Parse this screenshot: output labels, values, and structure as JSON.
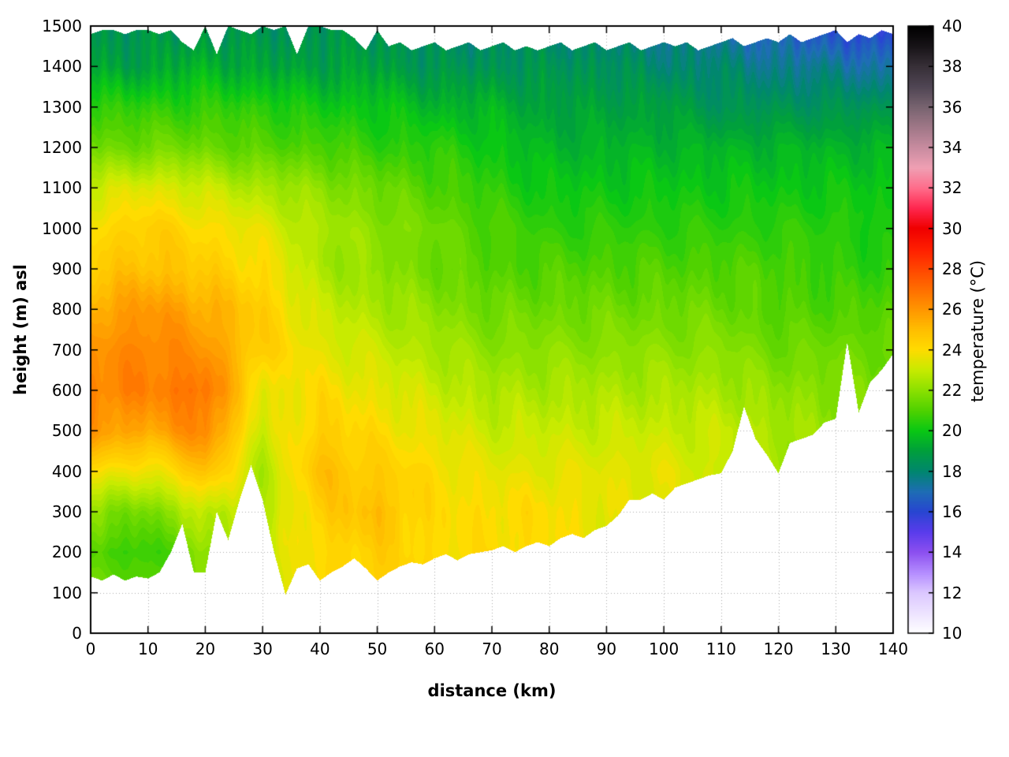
{
  "chart_data": {
    "type": "heatmap",
    "title": "",
    "xlabel": "distance (km)",
    "ylabel": "height (m) asl",
    "colorbar_label": "temperature (°C)",
    "x_range": [
      0,
      140
    ],
    "y_range": [
      0,
      1500
    ],
    "cb_range": [
      10,
      40
    ],
    "x_ticks": [
      0,
      10,
      20,
      30,
      40,
      50,
      60,
      70,
      80,
      90,
      100,
      110,
      120,
      130,
      140
    ],
    "y_ticks": [
      0,
      100,
      200,
      300,
      400,
      500,
      600,
      700,
      800,
      900,
      1000,
      1100,
      1200,
      1300,
      1400,
      1500
    ],
    "cb_ticks": [
      10,
      12,
      14,
      16,
      18,
      20,
      22,
      24,
      26,
      28,
      30,
      32,
      34,
      36,
      38,
      40
    ],
    "grid_on": true,
    "grid_x_step_km": 10,
    "grid_y_step_m": 100,
    "temps_by_column": [
      [
        22.0,
        22.0,
        21.0,
        22.0,
        24.0,
        26.0,
        26.5,
        26.0,
        25.5,
        24.5,
        24.0,
        23.0,
        21.5,
        20.5,
        19.0,
        18.5
      ],
      [
        21.0,
        21.0,
        20.5,
        21.5,
        23.5,
        25.5,
        26.5,
        26.5,
        26.0,
        25.0,
        24.5,
        23.5,
        21.5,
        20.5,
        19.0,
        18.5
      ],
      [
        22.0,
        22.0,
        22.0,
        23.0,
        25.0,
        26.5,
        27.0,
        26.0,
        25.5,
        24.5,
        24.0,
        23.0,
        21.5,
        20.5,
        19.5,
        18.5
      ],
      [
        23.0,
        23.0,
        23.0,
        22.5,
        22.5,
        23.0,
        23.5,
        24.5,
        24.5,
        24.0,
        23.5,
        22.5,
        21.0,
        20.5,
        19.0,
        18.5
      ],
      [
        24.0,
        24.0,
        24.0,
        24.5,
        25.0,
        24.5,
        24.0,
        23.5,
        23.0,
        22.5,
        22.5,
        22.0,
        21.0,
        20.0,
        19.0,
        18.5
      ],
      [
        24.5,
        24.5,
        24.5,
        25.0,
        24.5,
        24.0,
        23.5,
        23.0,
        22.5,
        22.0,
        22.0,
        21.5,
        20.5,
        20.0,
        19.0,
        18.5
      ],
      [
        24.0,
        24.0,
        24.0,
        24.0,
        24.0,
        23.5,
        23.0,
        22.5,
        22.0,
        21.5,
        21.5,
        21.0,
        20.5,
        19.5,
        18.5,
        18.0
      ],
      [
        24.0,
        24.0,
        24.0,
        24.0,
        23.5,
        23.0,
        22.5,
        22.0,
        21.5,
        21.0,
        21.0,
        20.5,
        20.0,
        19.5,
        18.5,
        18.0
      ],
      [
        24.0,
        24.0,
        24.0,
        24.0,
        23.5,
        23.0,
        22.5,
        22.0,
        21.5,
        21.0,
        20.5,
        20.0,
        19.5,
        19.0,
        18.5,
        18.0
      ],
      [
        23.5,
        23.5,
        23.5,
        23.5,
        23.5,
        23.0,
        22.5,
        22.0,
        21.5,
        21.0,
        20.5,
        20.0,
        19.5,
        19.0,
        18.5,
        17.5
      ],
      [
        23.5,
        23.5,
        23.5,
        23.5,
        23.5,
        23.0,
        22.5,
        22.0,
        21.5,
        21.0,
        20.5,
        20.0,
        19.5,
        19.0,
        18.0,
        17.5
      ],
      [
        23.0,
        23.0,
        23.0,
        23.0,
        23.0,
        23.0,
        22.5,
        22.0,
        21.5,
        21.0,
        20.5,
        20.0,
        19.5,
        18.5,
        18.0,
        17.0
      ],
      [
        22.5,
        22.5,
        22.5,
        22.5,
        22.5,
        22.5,
        22.0,
        21.5,
        21.0,
        21.0,
        20.5,
        20.0,
        19.5,
        18.5,
        17.5,
        16.5
      ],
      [
        22.0,
        22.0,
        22.0,
        22.0,
        22.0,
        22.0,
        22.0,
        21.5,
        21.0,
        20.5,
        20.5,
        20.0,
        19.5,
        18.5,
        17.5,
        16.0
      ],
      [
        21.5,
        21.5,
        21.5,
        21.5,
        21.5,
        21.5,
        21.5,
        21.5,
        21.0,
        20.5,
        20.0,
        20.0,
        19.5,
        18.5,
        17.0,
        15.5
      ]
    ],
    "terrain_km_step": 2,
    "terrain_m": [
      140,
      130,
      145,
      130,
      140,
      135,
      150,
      200,
      270,
      150,
      150,
      300,
      230,
      330,
      415,
      330,
      200,
      95,
      160,
      170,
      130,
      150,
      165,
      185,
      160,
      130,
      150,
      165,
      175,
      170,
      185,
      195,
      180,
      195,
      200,
      205,
      215,
      200,
      215,
      225,
      215,
      235,
      245,
      235,
      255,
      265,
      290,
      330,
      330,
      345,
      330,
      360,
      370,
      380,
      390,
      395,
      450,
      560,
      480,
      440,
      395,
      470,
      480,
      490,
      520,
      530,
      720,
      545,
      620,
      650,
      690
    ],
    "top_m": [
      1480,
      1490,
      1490,
      1480,
      1490,
      1490,
      1480,
      1490,
      1460,
      1440,
      1500,
      1430,
      1500,
      1490,
      1480,
      1500,
      1490,
      1500,
      1430,
      1500,
      1500,
      1490,
      1490,
      1470,
      1440,
      1490,
      1450,
      1460,
      1440,
      1450,
      1460,
      1440,
      1450,
      1460,
      1440,
      1450,
      1460,
      1440,
      1450,
      1440,
      1450,
      1460,
      1440,
      1450,
      1460,
      1440,
      1450,
      1460,
      1440,
      1450,
      1460,
      1450,
      1460,
      1440,
      1450,
      1460,
      1470,
      1450,
      1460,
      1470,
      1460,
      1480,
      1460,
      1470,
      1480,
      1490,
      1460,
      1480,
      1470,
      1490,
      1480
    ],
    "palette": [
      [
        10,
        "#ffffff"
      ],
      [
        12,
        "#dcc8ff"
      ],
      [
        13,
        "#b48cff"
      ],
      [
        14,
        "#8c50f0"
      ],
      [
        15,
        "#5a3cec"
      ],
      [
        16,
        "#2846d2"
      ],
      [
        17,
        "#1e6eb4"
      ],
      [
        18,
        "#00876e"
      ],
      [
        19,
        "#00a03c"
      ],
      [
        20,
        "#0ac814"
      ],
      [
        21,
        "#50d200"
      ],
      [
        22,
        "#8ce100"
      ],
      [
        23,
        "#c8eb00"
      ],
      [
        24,
        "#ffdc00"
      ],
      [
        25,
        "#ffbe00"
      ],
      [
        26,
        "#ff9600"
      ],
      [
        27,
        "#ff6e00"
      ],
      [
        28,
        "#ff4600"
      ],
      [
        29,
        "#ff1e00"
      ],
      [
        30,
        "#f00000"
      ],
      [
        31,
        "#ff2850"
      ],
      [
        32,
        "#ff6e8c"
      ],
      [
        33,
        "#f0a0b4"
      ],
      [
        34,
        "#c88ca0"
      ],
      [
        35,
        "#a07888"
      ],
      [
        36,
        "#786470"
      ],
      [
        37,
        "#504654"
      ],
      [
        38,
        "#383038"
      ],
      [
        39,
        "#181418"
      ],
      [
        40,
        "#000000"
      ]
    ],
    "colors": {
      "grid": "#aaaaaa",
      "border": "#000000",
      "background": "#ffffff"
    }
  }
}
